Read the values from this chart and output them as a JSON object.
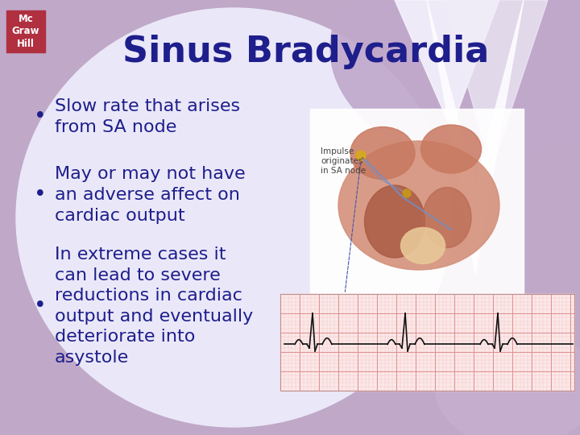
{
  "title": "Sinus Bradycardia",
  "title_color": "#1E1E8C",
  "title_fontsize": 32,
  "bullet_points": [
    "Slow rate that arises\nfrom SA node",
    "May or may not have\nan adverse affect on\ncardiac output",
    "In extreme cases it\ncan lead to severe\nreductions in cardiac\noutput and eventually\ndeteriorate into\nasystole"
  ],
  "bullet_color": "#1E1E8C",
  "bullet_fontsize": 16,
  "bg_outer": "#C0A8C8",
  "bg_center_ellipse": "#E8E4F4",
  "bg_diamond": "#F0EEF8",
  "bg_top_right": "#C8B4CC",
  "slide_bg": "#C0A8C8",
  "mcgrawhill_bg": "#B03040",
  "mcgrawhill_text": "Mc\nGraw\nHill",
  "ekg_color": "#111111",
  "ekg_bg": "#fce8e8",
  "grid_color_major": "#e09090",
  "grid_color_minor": "#f0c8c8",
  "annotation_line_color": "#4455aa",
  "annotation_text": "Impulse\noriginates\nin SA node"
}
